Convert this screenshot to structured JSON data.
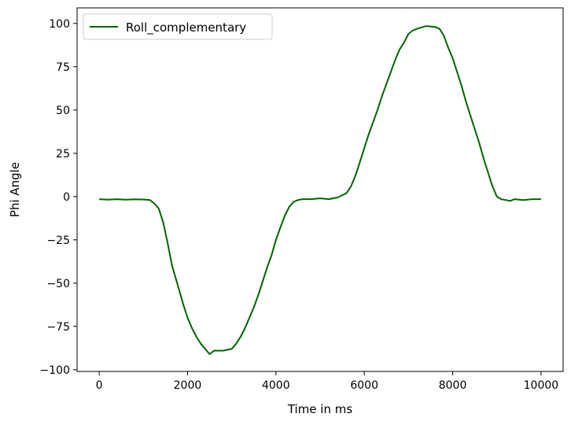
{
  "chart_data": {
    "type": "line",
    "xlabel": "Time in ms",
    "ylabel": "Phi Angle",
    "xlim": [
      -500,
      10500
    ],
    "ylim": [
      -101,
      109
    ],
    "xticks": [
      0,
      2000,
      4000,
      6000,
      8000,
      10000
    ],
    "yticks": [
      -100,
      -75,
      -50,
      -25,
      0,
      25,
      50,
      75,
      100
    ],
    "xtick_labels": [
      "0",
      "2000",
      "4000",
      "6000",
      "8000",
      "10000"
    ],
    "ytick_labels": [
      "−100",
      "−75",
      "−50",
      "−25",
      "0",
      "25",
      "50",
      "75",
      "100"
    ],
    "grid": false,
    "legend_position": "upper-left",
    "series": [
      {
        "name": "Roll_complementary",
        "color": "#006400",
        "x": [
          0,
          200,
          400,
          600,
          800,
          1000,
          1150,
          1250,
          1350,
          1450,
          1550,
          1650,
          1800,
          1900,
          2000,
          2100,
          2200,
          2300,
          2400,
          2500,
          2600,
          2800,
          3000,
          3100,
          3200,
          3300,
          3400,
          3500,
          3600,
          3700,
          3800,
          3900,
          4000,
          4100,
          4200,
          4300,
          4400,
          4500,
          4600,
          4800,
          5000,
          5200,
          5400,
          5600,
          5700,
          5800,
          5900,
          6000,
          6100,
          6200,
          6300,
          6400,
          6500,
          6600,
          6700,
          6800,
          6900,
          7000,
          7100,
          7200,
          7400,
          7600,
          7700,
          7800,
          7900,
          8000,
          8100,
          8200,
          8300,
          8400,
          8500,
          8600,
          8700,
          8800,
          8900,
          9000,
          9100,
          9200,
          9300,
          9400,
          9600,
          9800,
          10000
        ],
        "y": [
          -1.5,
          -1.8,
          -1.5,
          -1.8,
          -1.6,
          -1.7,
          -2.0,
          -4.0,
          -7.0,
          -15,
          -27,
          -40,
          -53,
          -62,
          -70,
          -76,
          -81,
          -85,
          -88,
          -91,
          -89,
          -89,
          -88,
          -85,
          -81,
          -76,
          -70,
          -64,
          -57,
          -49,
          -41,
          -34,
          -25,
          -18,
          -11,
          -6,
          -3,
          -2,
          -1.5,
          -1.5,
          -1.0,
          -1.5,
          -0.5,
          2,
          6,
          12,
          20,
          28,
          36,
          43,
          50,
          58,
          65,
          72,
          79,
          85,
          89,
          94,
          96,
          97,
          98.5,
          98,
          97,
          93,
          86,
          80,
          72,
          64,
          55,
          47,
          39,
          31,
          22,
          14,
          6,
          0,
          -1.5,
          -2.0,
          -2.5,
          -1.5,
          -2.0,
          -1.5,
          -1.5
        ]
      }
    ]
  }
}
